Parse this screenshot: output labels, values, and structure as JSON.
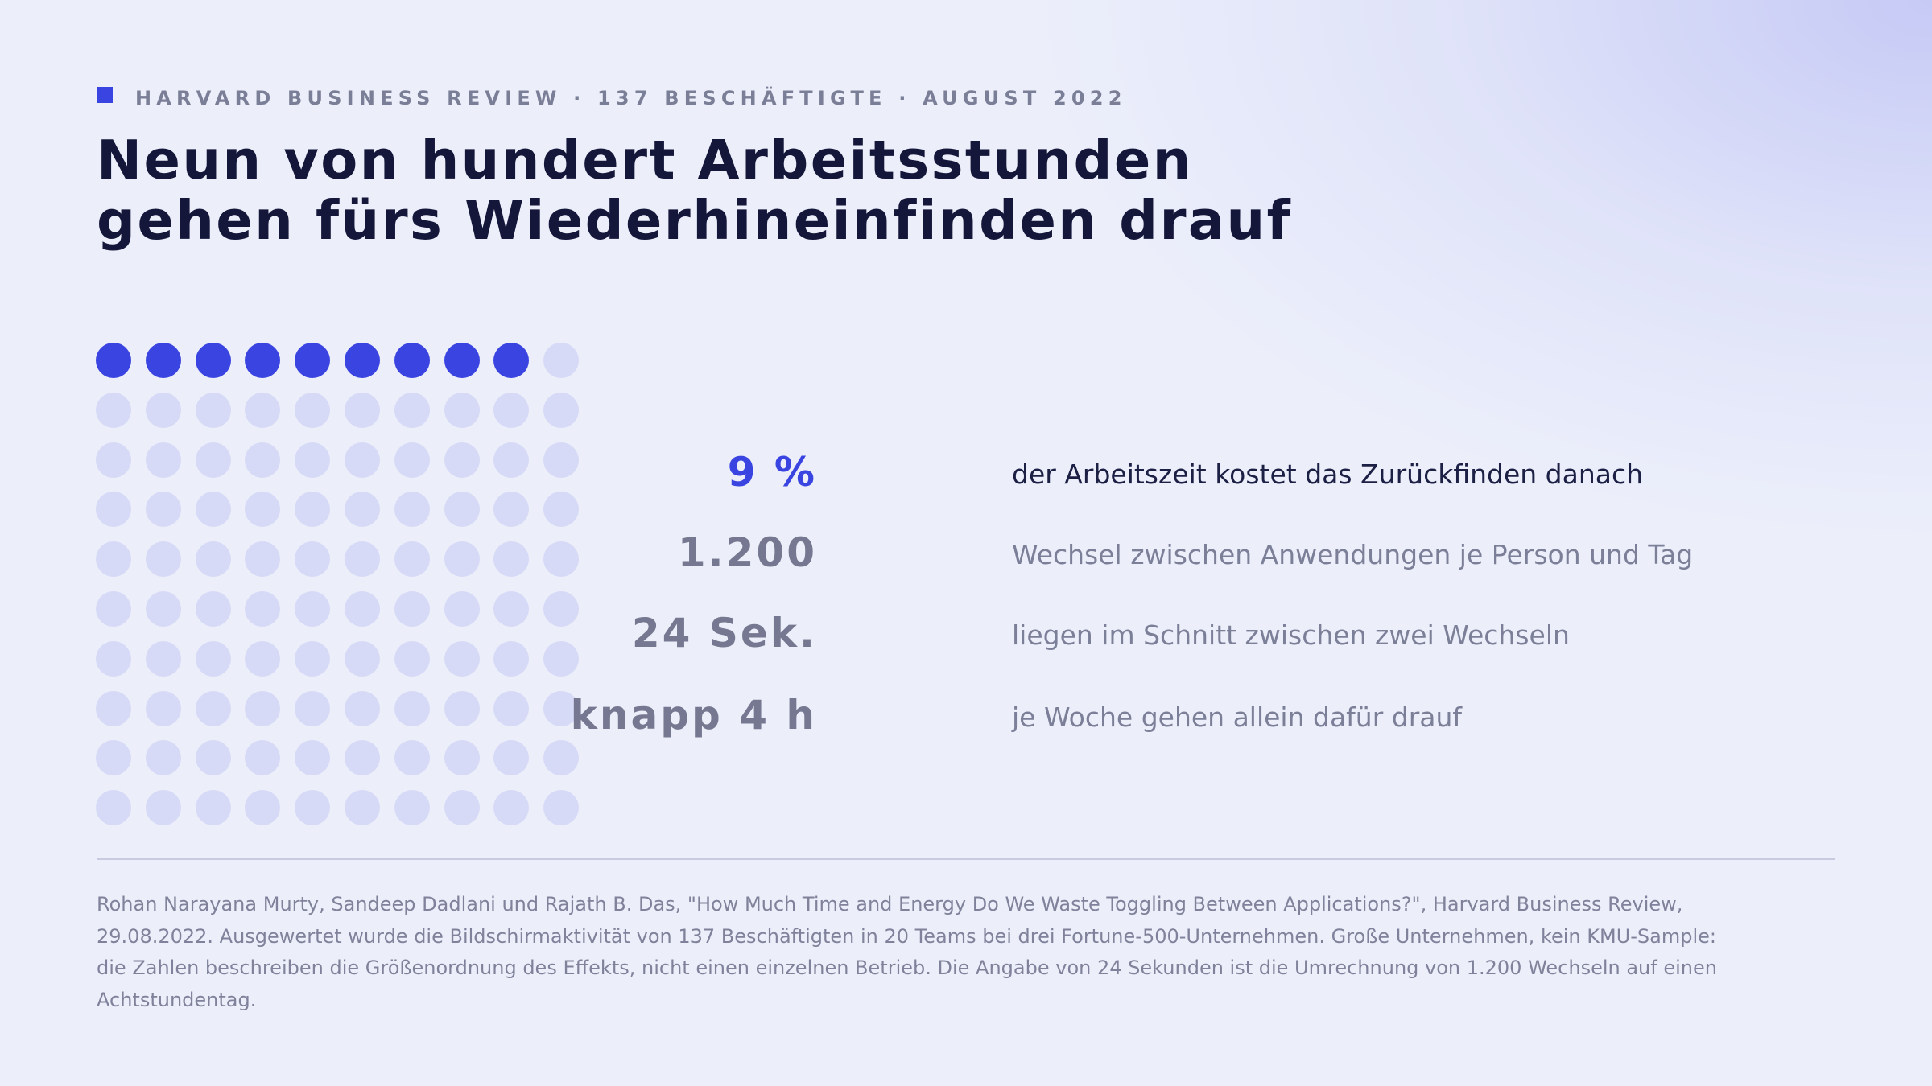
{
  "eyebrow": {
    "text": "HARVARD BUSINESS REVIEW · 137 BESCHÄFTIGTE · AUGUST 2022"
  },
  "title": {
    "line1": "Neun von hundert Arbeitsstunden",
    "line2": "gehen fürs Wiederhineinfinden drauf"
  },
  "dot_grid": {
    "rows": 10,
    "columns": 10,
    "filled_count": 9,
    "filled_color": "#3a44e0",
    "empty_color": "#d7daf6"
  },
  "stats": [
    {
      "value": "9 %",
      "label": "der Arbeitszeit kostet das Zurückfinden danach",
      "highlight": true
    },
    {
      "value": "1.200",
      "label": "Wechsel zwischen Anwendungen je Person und Tag",
      "highlight": false
    },
    {
      "value": "24 Sek.",
      "label": "liegen im Schnitt zwischen zwei Wechseln",
      "highlight": false
    },
    {
      "value": "knapp 4 h",
      "label": "je Woche gehen allein dafür drauf",
      "highlight": false
    }
  ],
  "source": {
    "lines": [
      "Rohan Narayana Murty, Sandeep Dadlani und Rajath B. Das, \"How Much Time and Energy Do We Waste Toggling Between Applications?\", Harvard Business Review,",
      "29.08.2022. Ausgewertet wurde die Bildschirmaktivität von 137 Beschäftigten in 20 Teams bei drei Fortune-500-Unternehmen. Große Unternehmen, kein KMU-Sample:",
      "die Zahlen beschreiben die Größenordnung des Effekts, nicht einen einzelnen Betrieb. Die Angabe von 24 Sekunden ist die Umrechnung von 1.200 Wechseln auf einen",
      "Achtstundentag."
    ]
  },
  "colors": {
    "accent": "#3a44e0",
    "title": "#14163a",
    "muted": "#7c7f98",
    "background": "#eceffa"
  }
}
